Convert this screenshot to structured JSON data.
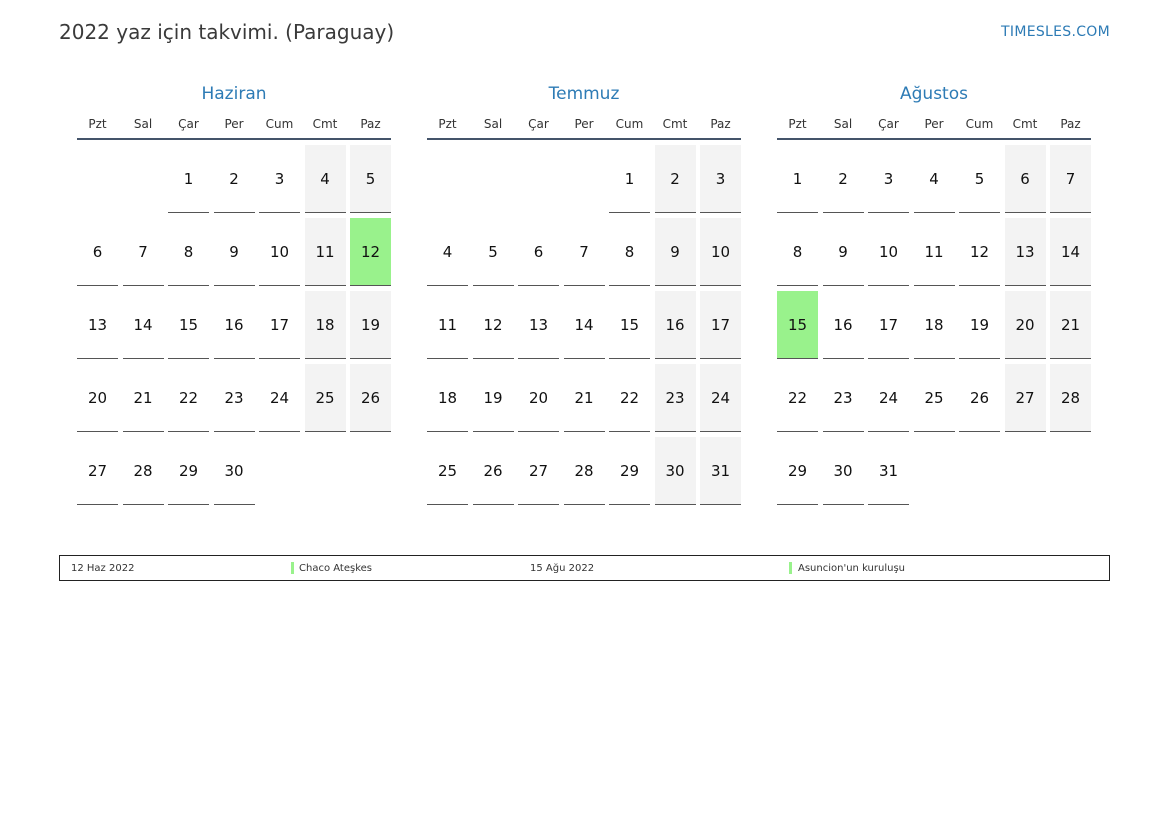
{
  "header": {
    "title": "2022 yaz için takvimi. (Paraguay)",
    "brand": "TIMESLES.COM"
  },
  "colors": {
    "accent": "#2d7bb5",
    "holiday": "#99f28c",
    "weekend": "#f3f3f3"
  },
  "weekdays": [
    "Pzt",
    "Sal",
    "Çar",
    "Per",
    "Cum",
    "Cmt",
    "Paz"
  ],
  "months": [
    {
      "name": "Haziran",
      "weeks": [
        [
          "",
          "",
          "1",
          "2",
          "3",
          "4",
          "5"
        ],
        [
          "6",
          "7",
          "8",
          "9",
          "10",
          "11",
          "12"
        ],
        [
          "13",
          "14",
          "15",
          "16",
          "17",
          "18",
          "19"
        ],
        [
          "20",
          "21",
          "22",
          "23",
          "24",
          "25",
          "26"
        ],
        [
          "27",
          "28",
          "29",
          "30",
          "",
          "",
          ""
        ]
      ],
      "holidays": [
        "12"
      ]
    },
    {
      "name": "Temmuz",
      "weeks": [
        [
          "",
          "",
          "",
          "",
          "1",
          "2",
          "3"
        ],
        [
          "4",
          "5",
          "6",
          "7",
          "8",
          "9",
          "10"
        ],
        [
          "11",
          "12",
          "13",
          "14",
          "15",
          "16",
          "17"
        ],
        [
          "18",
          "19",
          "20",
          "21",
          "22",
          "23",
          "24"
        ],
        [
          "25",
          "26",
          "27",
          "28",
          "29",
          "30",
          "31"
        ]
      ],
      "holidays": []
    },
    {
      "name": "Ağustos",
      "weeks": [
        [
          "1",
          "2",
          "3",
          "4",
          "5",
          "6",
          "7"
        ],
        [
          "8",
          "9",
          "10",
          "11",
          "12",
          "13",
          "14"
        ],
        [
          "15",
          "16",
          "17",
          "18",
          "19",
          "20",
          "21"
        ],
        [
          "22",
          "23",
          "24",
          "25",
          "26",
          "27",
          "28"
        ],
        [
          "29",
          "30",
          "31",
          "",
          "",
          "",
          ""
        ]
      ],
      "holidays": [
        "15"
      ]
    }
  ],
  "legend": [
    {
      "date": "12 Haz 2022",
      "name": "Chaco Ateşkes"
    },
    {
      "date": "15 Ağu 2022",
      "name": "Asuncion'un kuruluşu"
    }
  ]
}
